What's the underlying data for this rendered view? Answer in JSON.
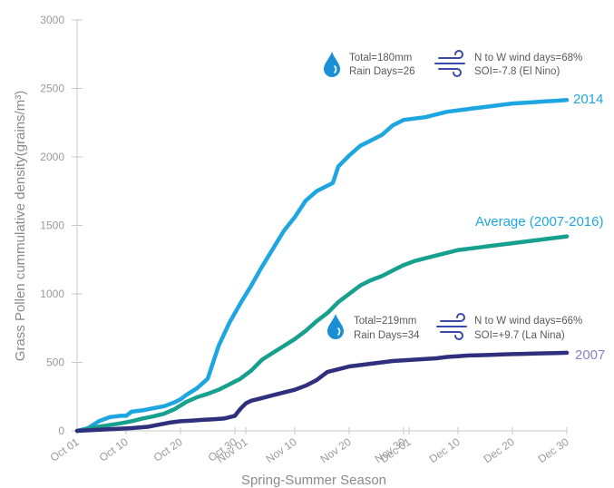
{
  "chart_data": {
    "type": "line",
    "title": "",
    "xlabel": "Spring-Summer Season",
    "ylabel": "Grass Pollen cummulative density(grains/m³)",
    "ylim": [
      0,
      3000
    ],
    "xlim": [
      0,
      90
    ],
    "yticks": [
      0,
      500,
      1000,
      1500,
      2000,
      2500,
      3000
    ],
    "xticks": [
      {
        "label": "Oct 01",
        "day": 0
      },
      {
        "label": "Oct 10",
        "day": 9
      },
      {
        "label": "Oct 20",
        "day": 19
      },
      {
        "label": "Oct 30",
        "day": 29
      },
      {
        "label": "Nov 01",
        "day": 31
      },
      {
        "label": "Nov 10",
        "day": 40
      },
      {
        "label": "Nov 20",
        "day": 50
      },
      {
        "label": "Nov 30",
        "day": 60
      },
      {
        "label": "Dec 01",
        "day": 61
      },
      {
        "label": "Dec 10",
        "day": 70
      },
      {
        "label": "Dec 20",
        "day": 80
      },
      {
        "label": "Dec 30",
        "day": 90
      }
    ],
    "grid": false,
    "series": [
      {
        "name": "2014",
        "color": "#1ea6e0",
        "points": [
          [
            0,
            0
          ],
          [
            2,
            20
          ],
          [
            4,
            70
          ],
          [
            6,
            100
          ],
          [
            8,
            110
          ],
          [
            9,
            110
          ],
          [
            10,
            140
          ],
          [
            12,
            150
          ],
          [
            14,
            165
          ],
          [
            16,
            180
          ],
          [
            18,
            210
          ],
          [
            19,
            230
          ],
          [
            20,
            260
          ],
          [
            22,
            310
          ],
          [
            24,
            380
          ],
          [
            25,
            500
          ],
          [
            26,
            620
          ],
          [
            28,
            790
          ],
          [
            30,
            930
          ],
          [
            32,
            1060
          ],
          [
            34,
            1200
          ],
          [
            36,
            1330
          ],
          [
            38,
            1460
          ],
          [
            40,
            1560
          ],
          [
            42,
            1680
          ],
          [
            44,
            1750
          ],
          [
            46,
            1790
          ],
          [
            47,
            1810
          ],
          [
            48,
            1930
          ],
          [
            50,
            2010
          ],
          [
            52,
            2080
          ],
          [
            54,
            2120
          ],
          [
            56,
            2160
          ],
          [
            58,
            2230
          ],
          [
            60,
            2270
          ],
          [
            62,
            2280
          ],
          [
            64,
            2290
          ],
          [
            66,
            2310
          ],
          [
            68,
            2330
          ],
          [
            70,
            2340
          ],
          [
            72,
            2350
          ],
          [
            74,
            2360
          ],
          [
            76,
            2370
          ],
          [
            78,
            2380
          ],
          [
            80,
            2390
          ],
          [
            82,
            2395
          ],
          [
            84,
            2400
          ],
          [
            86,
            2405
          ],
          [
            88,
            2410
          ],
          [
            90,
            2415
          ]
        ]
      },
      {
        "name": "Average (2007-2016)",
        "color": "#17a08d",
        "points": [
          [
            0,
            0
          ],
          [
            4,
            30
          ],
          [
            8,
            55
          ],
          [
            10,
            70
          ],
          [
            12,
            90
          ],
          [
            14,
            105
          ],
          [
            16,
            125
          ],
          [
            18,
            160
          ],
          [
            20,
            210
          ],
          [
            22,
            245
          ],
          [
            24,
            270
          ],
          [
            26,
            300
          ],
          [
            28,
            340
          ],
          [
            30,
            380
          ],
          [
            32,
            440
          ],
          [
            34,
            520
          ],
          [
            36,
            570
          ],
          [
            38,
            620
          ],
          [
            40,
            670
          ],
          [
            42,
            730
          ],
          [
            44,
            800
          ],
          [
            46,
            860
          ],
          [
            48,
            940
          ],
          [
            50,
            1000
          ],
          [
            52,
            1060
          ],
          [
            54,
            1100
          ],
          [
            56,
            1130
          ],
          [
            58,
            1170
          ],
          [
            60,
            1210
          ],
          [
            62,
            1240
          ],
          [
            64,
            1260
          ],
          [
            66,
            1280
          ],
          [
            68,
            1300
          ],
          [
            70,
            1320
          ],
          [
            72,
            1330
          ],
          [
            74,
            1340
          ],
          [
            76,
            1350
          ],
          [
            78,
            1360
          ],
          [
            80,
            1370
          ],
          [
            82,
            1380
          ],
          [
            84,
            1390
          ],
          [
            86,
            1400
          ],
          [
            88,
            1410
          ],
          [
            90,
            1420
          ]
        ]
      },
      {
        "name": "2007",
        "color": "#2f2f7e",
        "points": [
          [
            0,
            0
          ],
          [
            5,
            10
          ],
          [
            10,
            20
          ],
          [
            13,
            30
          ],
          [
            15,
            45
          ],
          [
            17,
            60
          ],
          [
            19,
            70
          ],
          [
            21,
            75
          ],
          [
            23,
            80
          ],
          [
            25,
            85
          ],
          [
            27,
            90
          ],
          [
            29,
            110
          ],
          [
            30,
            160
          ],
          [
            31,
            200
          ],
          [
            32,
            220
          ],
          [
            34,
            240
          ],
          [
            36,
            260
          ],
          [
            38,
            280
          ],
          [
            40,
            300
          ],
          [
            42,
            330
          ],
          [
            44,
            370
          ],
          [
            46,
            430
          ],
          [
            48,
            450
          ],
          [
            50,
            470
          ],
          [
            52,
            480
          ],
          [
            54,
            490
          ],
          [
            56,
            500
          ],
          [
            58,
            510
          ],
          [
            60,
            515
          ],
          [
            62,
            520
          ],
          [
            64,
            525
          ],
          [
            66,
            530
          ],
          [
            68,
            540
          ],
          [
            70,
            545
          ],
          [
            72,
            550
          ],
          [
            74,
            552
          ],
          [
            76,
            555
          ],
          [
            78,
            558
          ],
          [
            80,
            560
          ],
          [
            82,
            562
          ],
          [
            84,
            564
          ],
          [
            86,
            566
          ],
          [
            88,
            568
          ],
          [
            90,
            570
          ]
        ]
      }
    ],
    "annotations": [
      {
        "lines": [
          "Total=180mm",
          "Rain Days=26"
        ],
        "icon": "water-drop-icon"
      },
      {
        "lines": [
          "N to W wind days=68%",
          "SOI=-7.8 (El Nino)"
        ],
        "icon": "wind-icon"
      },
      {
        "lines": [
          "Total=219mm",
          "Rain Days=34"
        ],
        "icon": "water-drop-icon"
      },
      {
        "lines": [
          "N to W wind days=66%",
          "SOI=+9.7 (La Nina)"
        ],
        "icon": "wind-icon"
      }
    ]
  },
  "colors": {
    "axis": "#c8c8c8",
    "drop": "#1a8fd6",
    "wind": "#3b4aa8"
  }
}
